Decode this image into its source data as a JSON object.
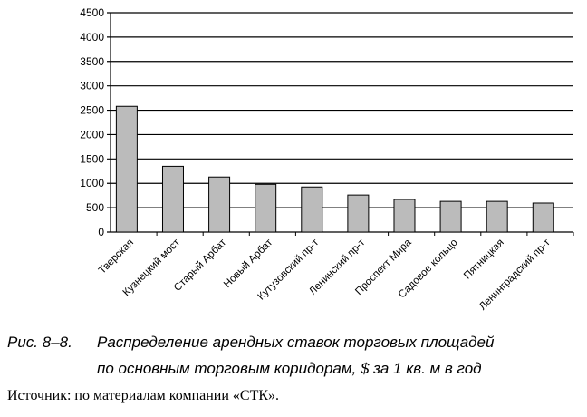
{
  "chart_data": {
    "type": "bar",
    "title": "",
    "xlabel": "",
    "ylabel": "",
    "ylim": [
      0,
      4500
    ],
    "yticks": [
      0,
      500,
      1000,
      1500,
      2000,
      2500,
      3000,
      3500,
      4000,
      4500
    ],
    "grid": true,
    "bar_color": "#bbbbbb",
    "categories": [
      "Тверская",
      "Кузнецкий мост",
      "Старый Арбат",
      "Новый Арбат",
      "Кутузовский пр-т",
      "Ленинский  пр-т",
      "Проспект Мира",
      "Садовое кольцо",
      "Пятницкая",
      "Ленинградский пр-т"
    ],
    "values": [
      2580,
      1350,
      1130,
      980,
      925,
      760,
      670,
      630,
      630,
      595
    ]
  },
  "caption": {
    "label": "Рис. 8–8.",
    "line1": "Распределение арендных ставок торговых площадей",
    "line2": "по основным торговым коридорам, $ за 1 кв. м в год"
  },
  "source": "Источник: по материалам компании «СТК»."
}
